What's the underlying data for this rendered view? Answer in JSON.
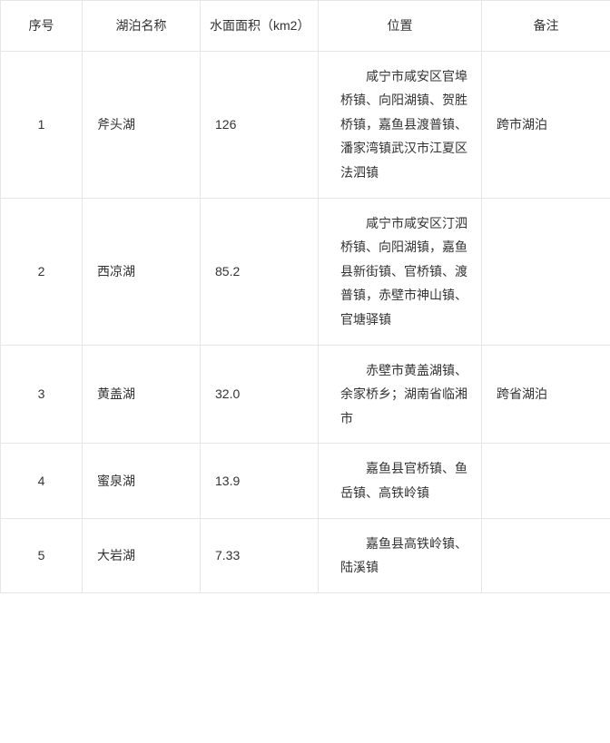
{
  "columns": {
    "index": "序号",
    "name": "湖泊名称",
    "area": "水面面积（km2）",
    "location": "位置",
    "note": "备注"
  },
  "rows": [
    {
      "index": "1",
      "name": "斧头湖",
      "area": "126",
      "location": "咸宁市咸安区官埠桥镇、向阳湖镇、贺胜桥镇，嘉鱼县渡普镇、潘家湾镇武汉市江夏区法泗镇",
      "note": "跨市湖泊"
    },
    {
      "index": "2",
      "name": "西凉湖",
      "area": "85.2",
      "location": "咸宁市咸安区汀泗桥镇、向阳湖镇，嘉鱼县新街镇、官桥镇、渡普镇，赤壁市神山镇、官塘驿镇",
      "note": ""
    },
    {
      "index": "3",
      "name": "黄盖湖",
      "area": "32.0",
      "location": "赤壁市黄盖湖镇、余家桥乡；湖南省临湘市",
      "note": "跨省湖泊"
    },
    {
      "index": "4",
      "name": "蜜泉湖",
      "area": "13.9",
      "location": "嘉鱼县官桥镇、鱼岳镇、高铁岭镇",
      "note": ""
    },
    {
      "index": "5",
      "name": "大岩湖",
      "area": "7.33",
      "location": "嘉鱼县高铁岭镇、陆溪镇",
      "note": ""
    }
  ],
  "style": {
    "border_color": "#e6e6e6",
    "text_color": "#333333",
    "font_size_pt": 14,
    "background": "#ffffff"
  }
}
